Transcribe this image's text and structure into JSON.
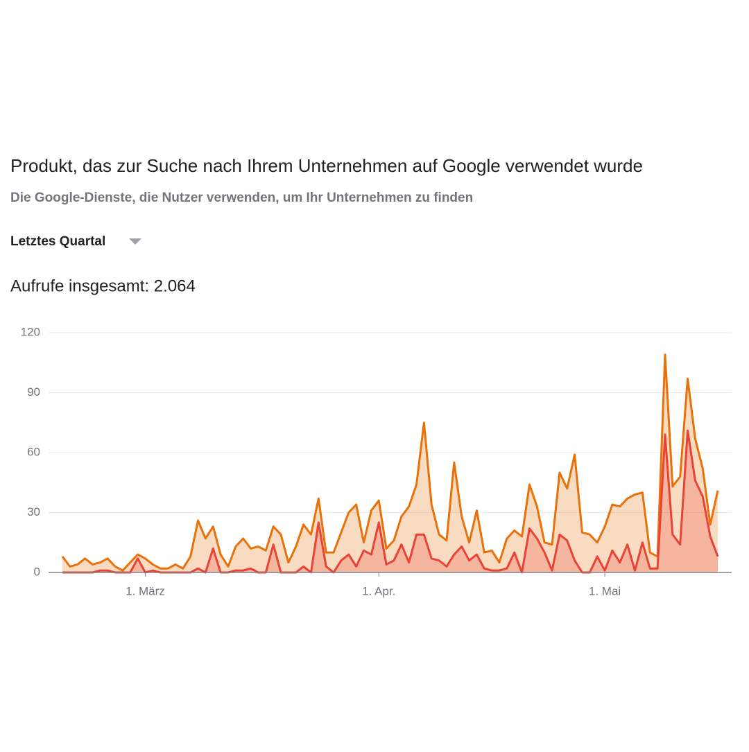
{
  "chart_data": {
    "type": "area",
    "title": "Produkt, das zur Suche nach Ihrem Unternehmen auf Google verwendet wurde",
    "subtitle": "Die Google-Dienste, die Nutzer verwenden, um Ihr Unternehmen zu finden",
    "period": "Letztes Quartal",
    "summary": "Aufrufe insgesamt: 2.064",
    "categories": [
      null,
      null,
      null,
      null,
      null,
      null,
      null,
      null,
      null,
      null,
      null,
      "1. März",
      null,
      null,
      null,
      null,
      null,
      null,
      null,
      null,
      null,
      null,
      null,
      null,
      null,
      null,
      null,
      null,
      null,
      null,
      null,
      null,
      null,
      null,
      null,
      null,
      null,
      null,
      null,
      null,
      null,
      null,
      "1. Apr.",
      null,
      null,
      null,
      null,
      null,
      null,
      null,
      null,
      null,
      null,
      null,
      null,
      null,
      null,
      null,
      null,
      null,
      null,
      null,
      null,
      null,
      null,
      null,
      null,
      null,
      null,
      null,
      null,
      null,
      "1. Mai",
      null,
      null,
      null,
      null,
      null,
      null,
      null,
      null,
      null,
      null,
      null,
      null,
      null,
      null,
      null
    ],
    "series": [
      {
        "color": "#e8710a",
        "values": [
          8,
          3,
          4,
          7,
          4,
          5,
          7,
          3,
          1,
          5,
          9,
          7,
          4,
          2,
          2,
          4,
          2,
          8,
          26,
          17,
          23,
          9,
          3,
          13,
          17,
          12,
          13,
          11,
          23,
          19,
          5,
          13,
          24,
          19,
          37,
          10,
          10,
          20,
          30,
          34,
          15,
          31,
          36,
          12,
          16,
          28,
          33,
          44,
          75,
          34,
          19,
          16,
          55,
          28,
          15,
          31,
          10,
          11,
          5,
          17,
          21,
          18,
          44,
          33,
          15,
          14,
          50,
          42,
          59,
          20,
          19,
          15,
          23,
          34,
          33,
          37,
          39,
          40,
          10,
          8,
          109,
          43,
          48,
          97,
          67,
          52,
          24,
          41
        ]
      },
      {
        "color": "#ea4335",
        "values": [
          0,
          0,
          0,
          0,
          0,
          1,
          1,
          0,
          0,
          0,
          7,
          0,
          1,
          0,
          0,
          0,
          0,
          0,
          2,
          0,
          12,
          0,
          0,
          1,
          1,
          2,
          0,
          0,
          14,
          0,
          0,
          0,
          3,
          0,
          25,
          3,
          0,
          6,
          9,
          3,
          11,
          9,
          25,
          4,
          6,
          14,
          5,
          19,
          19,
          7,
          6,
          3,
          9,
          13,
          6,
          9,
          2,
          1,
          1,
          2,
          10,
          0,
          22,
          17,
          10,
          1,
          19,
          16,
          6,
          0,
          0,
          8,
          1,
          11,
          5,
          14,
          1,
          15,
          2,
          2,
          69,
          19,
          14,
          71,
          46,
          38,
          18,
          8
        ]
      }
    ],
    "ylim": [
      0,
      120
    ],
    "yticks": [
      0,
      30,
      60,
      90,
      120
    ],
    "grid": true
  }
}
